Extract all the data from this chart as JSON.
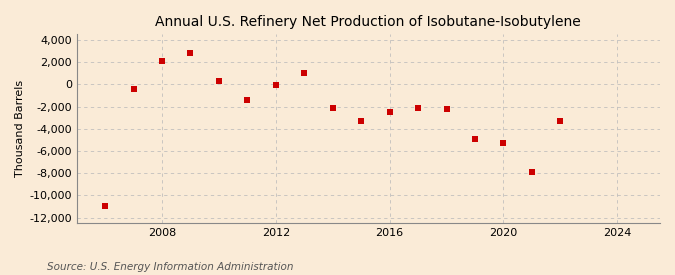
{
  "title": "Annual U.S. Refinery Net Production of Isobutane-Isobutylene",
  "ylabel": "Thousand Barrels",
  "source": "Source: U.S. Energy Information Administration",
  "years": [
    2006,
    2007,
    2008,
    2009,
    2010,
    2011,
    2012,
    2013,
    2014,
    2015,
    2016,
    2017,
    2018,
    2019,
    2020,
    2021,
    2022
  ],
  "values": [
    -11000,
    -400,
    2100,
    2800,
    300,
    -1400,
    -100,
    1000,
    -2100,
    -3300,
    -2500,
    -2100,
    -2200,
    -4900,
    -5300,
    -7900,
    -3300
  ],
  "marker_color": "#cc0000",
  "marker_size": 5,
  "xlim": [
    2005.0,
    2025.5
  ],
  "ylim": [
    -12500,
    4500
  ],
  "yticks": [
    -12000,
    -10000,
    -8000,
    -6000,
    -4000,
    -2000,
    0,
    2000,
    4000
  ],
  "xticks": [
    2008,
    2012,
    2016,
    2020,
    2024
  ],
  "grid_color": "#bbbbbb",
  "bg_color": "#faebd7",
  "plot_bg_color": "#faebd7",
  "title_fontsize": 10,
  "axis_label_fontsize": 8,
  "tick_fontsize": 8,
  "source_fontsize": 7.5
}
